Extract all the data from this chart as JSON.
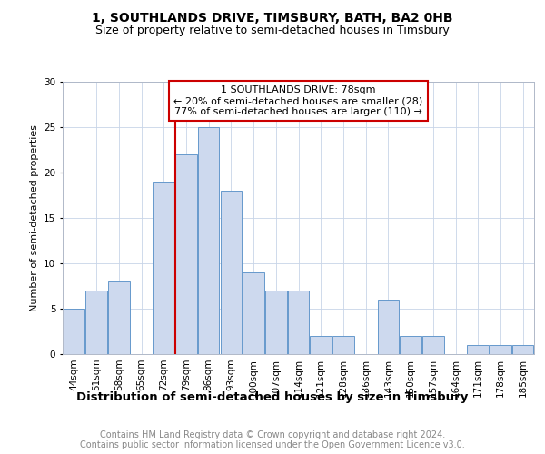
{
  "title": "1, SOUTHLANDS DRIVE, TIMSBURY, BATH, BA2 0HB",
  "subtitle": "Size of property relative to semi-detached houses in Timsbury",
  "xlabel": "Distribution of semi-detached houses by size in Timsbury",
  "ylabel": "Number of semi-detached properties",
  "bar_labels": [
    "44sqm",
    "51sqm",
    "58sqm",
    "65sqm",
    "72sqm",
    "79sqm",
    "86sqm",
    "93sqm",
    "100sqm",
    "107sqm",
    "114sqm",
    "121sqm",
    "128sqm",
    "136sqm",
    "143sqm",
    "150sqm",
    "157sqm",
    "164sqm",
    "171sqm",
    "178sqm",
    "185sqm"
  ],
  "bar_values": [
    5,
    7,
    8,
    0,
    19,
    22,
    25,
    18,
    9,
    7,
    7,
    2,
    2,
    0,
    6,
    2,
    2,
    0,
    1,
    1,
    1
  ],
  "bar_color": "#cdd9ee",
  "bar_edge_color": "#6699cc",
  "annotation_title": "1 SOUTHLANDS DRIVE: 78sqm",
  "annotation_line1": "← 20% of semi-detached houses are smaller (28)",
  "annotation_line2": "77% of semi-detached houses are larger (110) →",
  "annotation_box_color": "#ffffff",
  "annotation_border_color": "#cc0000",
  "vline_color": "#cc0000",
  "ylim": [
    0,
    30
  ],
  "yticks": [
    0,
    5,
    10,
    15,
    20,
    25,
    30
  ],
  "footer_line1": "Contains HM Land Registry data © Crown copyright and database right 2024.",
  "footer_line2": "Contains public sector information licensed under the Open Government Licence v3.0.",
  "title_fontsize": 10,
  "subtitle_fontsize": 9,
  "xlabel_fontsize": 9.5,
  "ylabel_fontsize": 8,
  "tick_fontsize": 7.5,
  "annot_fontsize": 8,
  "footer_fontsize": 7,
  "bg_color": "#ffffff",
  "grid_color": "#c8d4e8"
}
